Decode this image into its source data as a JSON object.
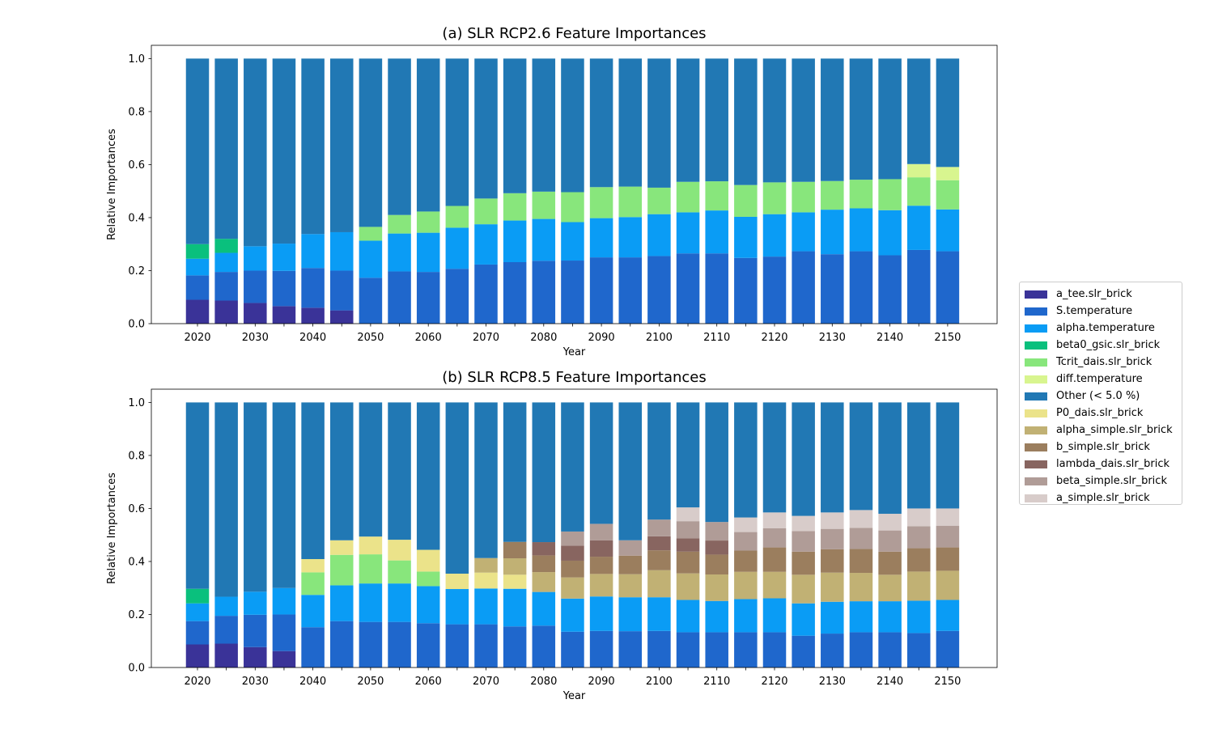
{
  "legend": {
    "items": [
      {
        "label": "a_tee.slr_brick",
        "color": "#3a3398"
      },
      {
        "label": "S.temperature",
        "color": "#1f67cc"
      },
      {
        "label": "alpha.temperature",
        "color": "#0a9cf5"
      },
      {
        "label": "beta0_gsic.slr_brick",
        "color": "#0ac07d"
      },
      {
        "label": "Tcrit_dais.slr_brick",
        "color": "#88e67c"
      },
      {
        "label": "diff.temperature",
        "color": "#d8f58f"
      },
      {
        "label": "Other (< 5.0 %)",
        "color": "#2178b4"
      },
      {
        "label": "P0_dais.slr_brick",
        "color": "#ebe38a"
      },
      {
        "label": "alpha_simple.slr_brick",
        "color": "#c1b174"
      },
      {
        "label": "b_simple.slr_brick",
        "color": "#9b7e5e"
      },
      {
        "label": "lambda_dais.slr_brick",
        "color": "#886560"
      },
      {
        "label": "beta_simple.slr_brick",
        "color": "#b09c97"
      },
      {
        "label": "a_simple.slr_brick",
        "color": "#d8ccca"
      }
    ]
  },
  "chart_data": [
    {
      "type": "bar",
      "stacked": true,
      "title": "(a) SLR RCP2.6 Feature Importances",
      "xlabel": "Year",
      "ylabel": "Relative Importances",
      "ylim": [
        0,
        1.05
      ],
      "yticks": [
        "0.0",
        "0.2",
        "0.4",
        "0.6",
        "0.8",
        "1.0"
      ],
      "xticks": [
        "2020",
        "2030",
        "2040",
        "2050",
        "2060",
        "2070",
        "2080",
        "2090",
        "2100",
        "2110",
        "2120",
        "2130",
        "2140",
        "2150"
      ],
      "categories": [
        2020,
        2025,
        2030,
        2035,
        2040,
        2045,
        2050,
        2055,
        2060,
        2065,
        2070,
        2075,
        2080,
        2085,
        2090,
        2095,
        2100,
        2105,
        2110,
        2115,
        2120,
        2125,
        2130,
        2135,
        2140,
        2145,
        2150
      ],
      "series": [
        {
          "name": "a_tee.slr_brick",
          "values": [
            0.09,
            0.087,
            0.078,
            0.066,
            0.06,
            0.05,
            0,
            0,
            0,
            0,
            0,
            0,
            0,
            0,
            0,
            0,
            0,
            0,
            0,
            0,
            0,
            0,
            0,
            0,
            0,
            0,
            0
          ]
        },
        {
          "name": "S.temperature",
          "values": [
            0.092,
            0.108,
            0.122,
            0.133,
            0.15,
            0.15,
            0.173,
            0.197,
            0.195,
            0.207,
            0.223,
            0.232,
            0.237,
            0.238,
            0.25,
            0.25,
            0.255,
            0.265,
            0.265,
            0.248,
            0.253,
            0.273,
            0.262,
            0.273,
            0.258,
            0.278,
            0.273
          ]
        },
        {
          "name": "alpha.temperature",
          "values": [
            0.063,
            0.072,
            0.092,
            0.103,
            0.128,
            0.145,
            0.14,
            0.143,
            0.148,
            0.155,
            0.152,
            0.157,
            0.158,
            0.145,
            0.148,
            0.152,
            0.158,
            0.155,
            0.162,
            0.155,
            0.16,
            0.147,
            0.168,
            0.162,
            0.17,
            0.167,
            0.158
          ]
        },
        {
          "name": "beta0_gsic.slr_brick",
          "values": [
            0.055,
            0.053,
            0,
            0,
            0,
            0,
            0,
            0,
            0,
            0,
            0,
            0,
            0,
            0,
            0,
            0,
            0,
            0,
            0,
            0,
            0,
            0,
            0,
            0,
            0,
            0,
            0
          ]
        },
        {
          "name": "Tcrit_dais.slr_brick",
          "values": [
            0,
            0,
            0,
            0,
            0,
            0,
            0.052,
            0.07,
            0.08,
            0.082,
            0.097,
            0.103,
            0.103,
            0.113,
            0.117,
            0.115,
            0.1,
            0.115,
            0.11,
            0.12,
            0.12,
            0.115,
            0.108,
            0.108,
            0.117,
            0.107,
            0.11
          ]
        },
        {
          "name": "diff.temperature",
          "values": [
            0,
            0,
            0,
            0,
            0,
            0,
            0,
            0,
            0,
            0,
            0,
            0,
            0,
            0,
            0,
            0,
            0,
            0,
            0,
            0,
            0,
            0,
            0,
            0,
            0,
            0.05,
            0.05
          ]
        },
        {
          "name": "Other (< 5.0 %)",
          "values": [
            0.7,
            0.68,
            0.708,
            0.698,
            0.662,
            0.655,
            0.635,
            0.59,
            0.577,
            0.556,
            0.528,
            0.508,
            0.502,
            0.504,
            0.485,
            0.483,
            0.487,
            0.465,
            0.463,
            0.477,
            0.467,
            0.465,
            0.462,
            0.457,
            0.455,
            0.398,
            0.409
          ]
        }
      ]
    },
    {
      "type": "bar",
      "stacked": true,
      "title": "(b) SLR RCP8.5 Feature Importances",
      "xlabel": "Year",
      "ylabel": "Relative Importances",
      "ylim": [
        0,
        1.05
      ],
      "yticks": [
        "0.0",
        "0.2",
        "0.4",
        "0.6",
        "0.8",
        "1.0"
      ],
      "xticks": [
        "2020",
        "2030",
        "2040",
        "2050",
        "2060",
        "2070",
        "2080",
        "2090",
        "2100",
        "2110",
        "2120",
        "2130",
        "2140",
        "2150"
      ],
      "categories": [
        2020,
        2025,
        2030,
        2035,
        2040,
        2045,
        2050,
        2055,
        2060,
        2065,
        2070,
        2075,
        2080,
        2085,
        2090,
        2095,
        2100,
        2105,
        2110,
        2115,
        2120,
        2125,
        2130,
        2135,
        2140,
        2145,
        2150
      ],
      "series": [
        {
          "name": "a_tee.slr_brick",
          "values": [
            0.087,
            0.09,
            0.077,
            0.062,
            0,
            0,
            0,
            0,
            0,
            0,
            0,
            0,
            0,
            0,
            0,
            0,
            0,
            0,
            0,
            0,
            0,
            0,
            0,
            0,
            0,
            0,
            0
          ]
        },
        {
          "name": "S.temperature",
          "values": [
            0.088,
            0.105,
            0.122,
            0.138,
            0.152,
            0.175,
            0.172,
            0.172,
            0.167,
            0.163,
            0.163,
            0.155,
            0.158,
            0.135,
            0.138,
            0.137,
            0.138,
            0.133,
            0.133,
            0.133,
            0.133,
            0.12,
            0.128,
            0.133,
            0.133,
            0.13,
            0.138
          ]
        },
        {
          "name": "alpha.temperature",
          "values": [
            0.067,
            0.072,
            0.087,
            0.1,
            0.122,
            0.135,
            0.145,
            0.145,
            0.14,
            0.133,
            0.135,
            0.142,
            0.127,
            0.125,
            0.13,
            0.128,
            0.127,
            0.122,
            0.118,
            0.125,
            0.128,
            0.122,
            0.12,
            0.117,
            0.117,
            0.122,
            0.117
          ]
        },
        {
          "name": "beta0_gsic.slr_brick",
          "values": [
            0.055,
            0,
            0,
            0,
            0,
            0,
            0,
            0,
            0,
            0,
            0,
            0,
            0,
            0,
            0,
            0,
            0,
            0,
            0,
            0,
            0,
            0,
            0,
            0,
            0,
            0,
            0
          ]
        },
        {
          "name": "Tcrit_dais.slr_brick",
          "values": [
            0,
            0,
            0,
            0,
            0.085,
            0.115,
            0.11,
            0.087,
            0.055,
            0,
            0,
            0,
            0,
            0,
            0,
            0,
            0,
            0,
            0,
            0,
            0,
            0,
            0,
            0,
            0,
            0,
            0
          ]
        },
        {
          "name": "P0_dais.slr_brick",
          "values": [
            0,
            0,
            0,
            0,
            0.05,
            0.055,
            0.067,
            0.078,
            0.082,
            0.058,
            0.06,
            0.053,
            0,
            0,
            0,
            0,
            0,
            0,
            0,
            0,
            0,
            0,
            0,
            0,
            0,
            0,
            0
          ]
        },
        {
          "name": "alpha_simple.slr_brick",
          "values": [
            0,
            0,
            0,
            0,
            0,
            0,
            0,
            0,
            0,
            0,
            0.055,
            0.062,
            0.075,
            0.08,
            0.085,
            0.087,
            0.102,
            0.1,
            0.1,
            0.103,
            0.1,
            0.108,
            0.11,
            0.107,
            0.1,
            0.11,
            0.11
          ]
        },
        {
          "name": "b_simple.slr_brick",
          "values": [
            0,
            0,
            0,
            0,
            0,
            0,
            0,
            0,
            0,
            0,
            0,
            0.062,
            0.063,
            0.063,
            0.065,
            0.07,
            0.075,
            0.082,
            0.075,
            0.08,
            0.092,
            0.087,
            0.088,
            0.09,
            0.087,
            0.088,
            0.088
          ]
        },
        {
          "name": "lambda_dais.slr_brick",
          "values": [
            0,
            0,
            0,
            0,
            0,
            0,
            0,
            0,
            0,
            0,
            0,
            0,
            0.05,
            0.057,
            0.062,
            0,
            0.053,
            0.05,
            0.053,
            0,
            0,
            0,
            0,
            0,
            0,
            0,
            0
          ]
        },
        {
          "name": "beta_simple.slr_brick",
          "values": [
            0,
            0,
            0,
            0,
            0,
            0,
            0,
            0,
            0,
            0,
            0,
            0,
            0,
            0.053,
            0.062,
            0.058,
            0.063,
            0.065,
            0.07,
            0.07,
            0.072,
            0.078,
            0.077,
            0.08,
            0.08,
            0.083,
            0.082
          ]
        },
        {
          "name": "a_simple.slr_brick",
          "values": [
            0,
            0,
            0,
            0,
            0,
            0,
            0,
            0,
            0,
            0,
            0,
            0,
            0,
            0,
            0,
            0,
            0,
            0.052,
            0,
            0.055,
            0.06,
            0.057,
            0.062,
            0.067,
            0.063,
            0.067,
            0.065
          ]
        },
        {
          "name": "Other (< 5.0 %)",
          "values": [
            0.703,
            0.733,
            0.714,
            0.7,
            0.591,
            0.52,
            0.506,
            0.518,
            0.556,
            0.646,
            0.587,
            0.526,
            0.527,
            0.487,
            0.458,
            0.52,
            0.442,
            0.396,
            0.451,
            0.434,
            0.415,
            0.428,
            0.415,
            0.406,
            0.42,
            0.4,
            0.4
          ]
        }
      ]
    }
  ]
}
